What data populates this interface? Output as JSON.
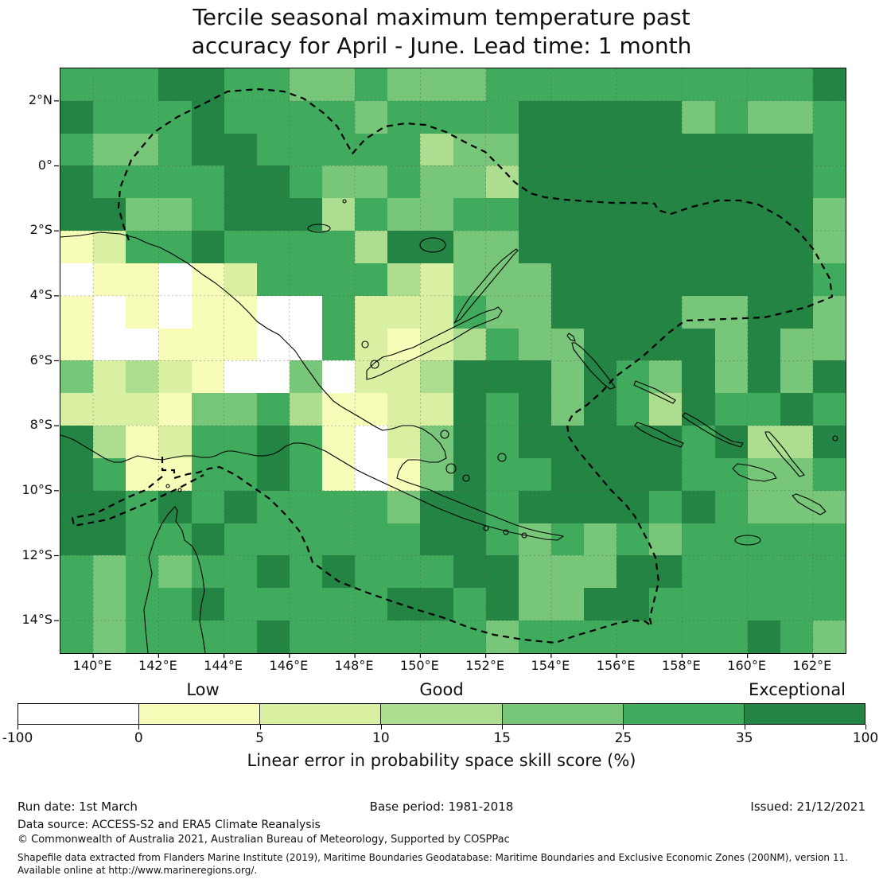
{
  "title": {
    "line1": "Tercile seasonal maximum temperature past",
    "line2": "accuracy for April - June. Lead time: 1 month"
  },
  "map": {
    "lat_ticks": [
      "2°N",
      "0°",
      "2°S",
      "4°S",
      "6°S",
      "8°S",
      "10°S",
      "12°S",
      "14°S"
    ],
    "lon_ticks": [
      "140°E",
      "142°E",
      "144°E",
      "146°E",
      "148°E",
      "150°E",
      "152°E",
      "154°E",
      "156°E",
      "158°E",
      "160°E",
      "162°E"
    ]
  },
  "chart_data": {
    "type": "heatmap",
    "title": "Tercile seasonal maximum temperature past accuracy for April - June. Lead time: 1 month",
    "xlabel": "Longitude (°E)",
    "ylabel": "Latitude",
    "lon_range": [
      139,
      163
    ],
    "lat_range": [
      -15,
      3
    ],
    "cell_size_deg": 1,
    "value_bins": {
      "edges": [
        -100,
        0,
        5,
        10,
        15,
        25,
        35,
        100
      ],
      "labels": [
        "<0",
        "0-5",
        "5-10",
        "10-15",
        "15-25",
        "25-35",
        "35-100"
      ],
      "colors": [
        "#ffffff",
        "#f7fcb9",
        "#d9f0a3",
        "#addd8e",
        "#78c679",
        "#41ab5d",
        "#238443"
      ]
    },
    "grid_rows_north_to_south": [
      "555665544544455555555556",
      "655565555455556666645445",
      "544566555553446666666665",
      "655556654454436666666665",
      "664456663544556666666664",
      "125565555366446666666664",
      "011012555532444666666665",
      "101011005222544666644664",
      "100111005212354466664644",
      "423210040223666465464646",
      "222144531122656465365565",
      "631255651024656666656336",
      "651155651014655666655445",
      "665656555546656666565444",
      "665565555556654545455555",
      "545455656555664446655555",
      "545565555566564466555555",
      "545555655555545555555654"
    ]
  },
  "legend": {
    "categories": [
      {
        "label": "Low"
      },
      {
        "label": "Good"
      },
      {
        "label": "Exceptional"
      }
    ],
    "colorbar": {
      "segments": [
        {
          "color": "#ffffff"
        },
        {
          "color": "#f7fcb9"
        },
        {
          "color": "#d9f0a3"
        },
        {
          "color": "#addd8e"
        },
        {
          "color": "#78c679"
        },
        {
          "color": "#41ab5d"
        },
        {
          "color": "#238443"
        }
      ],
      "ticks": [
        "-100",
        "0",
        "5",
        "10",
        "15",
        "25",
        "35",
        "100"
      ]
    },
    "caption": "Linear error in probability space skill score (%)"
  },
  "footer": {
    "run_date": "Run date: 1st March",
    "base_period": "Base period: 1981-2018",
    "issued": "Issued: 21/12/2021",
    "data_source": "Data source: ACCESS-S2 and ERA5 Climate Reanalysis",
    "copyright": "© Commonwealth of Australia 2021, Australian Bureau of Meteorology, Supported by COSPPac",
    "shapefile_line1": "Shapefile data extracted from Flanders Marine Institute (2019), Maritime Boundaries Geodatabase: Maritime Boundaries and Exclusive Economic Zones (200NM), version 11.",
    "shapefile_line2": "Available online at http://www.marineregions.org/."
  }
}
